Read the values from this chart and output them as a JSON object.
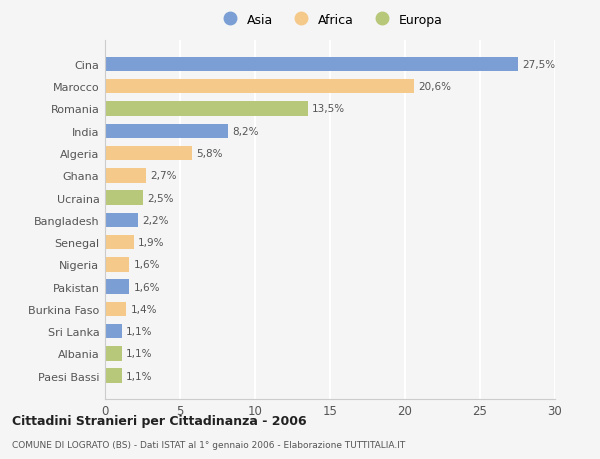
{
  "categories": [
    "Cina",
    "Marocco",
    "Romania",
    "India",
    "Algeria",
    "Ghana",
    "Ucraina",
    "Bangladesh",
    "Senegal",
    "Nigeria",
    "Pakistan",
    "Burkina Faso",
    "Sri Lanka",
    "Albania",
    "Paesi Bassi"
  ],
  "values": [
    27.5,
    20.6,
    13.5,
    8.2,
    5.8,
    2.7,
    2.5,
    2.2,
    1.9,
    1.6,
    1.6,
    1.4,
    1.1,
    1.1,
    1.1
  ],
  "labels": [
    "27,5%",
    "20,6%",
    "13,5%",
    "8,2%",
    "5,8%",
    "2,7%",
    "2,5%",
    "2,2%",
    "1,9%",
    "1,6%",
    "1,6%",
    "1,4%",
    "1,1%",
    "1,1%",
    "1,1%"
  ],
  "colors": [
    "#7b9fd4",
    "#f5c98a",
    "#b8c87a",
    "#7b9fd4",
    "#f5c98a",
    "#f5c98a",
    "#b8c87a",
    "#7b9fd4",
    "#f5c98a",
    "#f5c98a",
    "#7b9fd4",
    "#f5c98a",
    "#7b9fd4",
    "#b8c87a",
    "#b8c87a"
  ],
  "legend_labels": [
    "Asia",
    "Africa",
    "Europa"
  ],
  "legend_colors": [
    "#7b9fd4",
    "#f5c98a",
    "#b8c87a"
  ],
  "title": "Cittadini Stranieri per Cittadinanza - 2006",
  "subtitle": "COMUNE DI LOGRATO (BS) - Dati ISTAT al 1° gennaio 2006 - Elaborazione TUTTITALIA.IT",
  "xlim": [
    0,
    30
  ],
  "xticks": [
    0,
    5,
    10,
    15,
    20,
    25,
    30
  ],
  "background_color": "#f5f5f5",
  "grid_color": "#ffffff",
  "bar_height": 0.65
}
